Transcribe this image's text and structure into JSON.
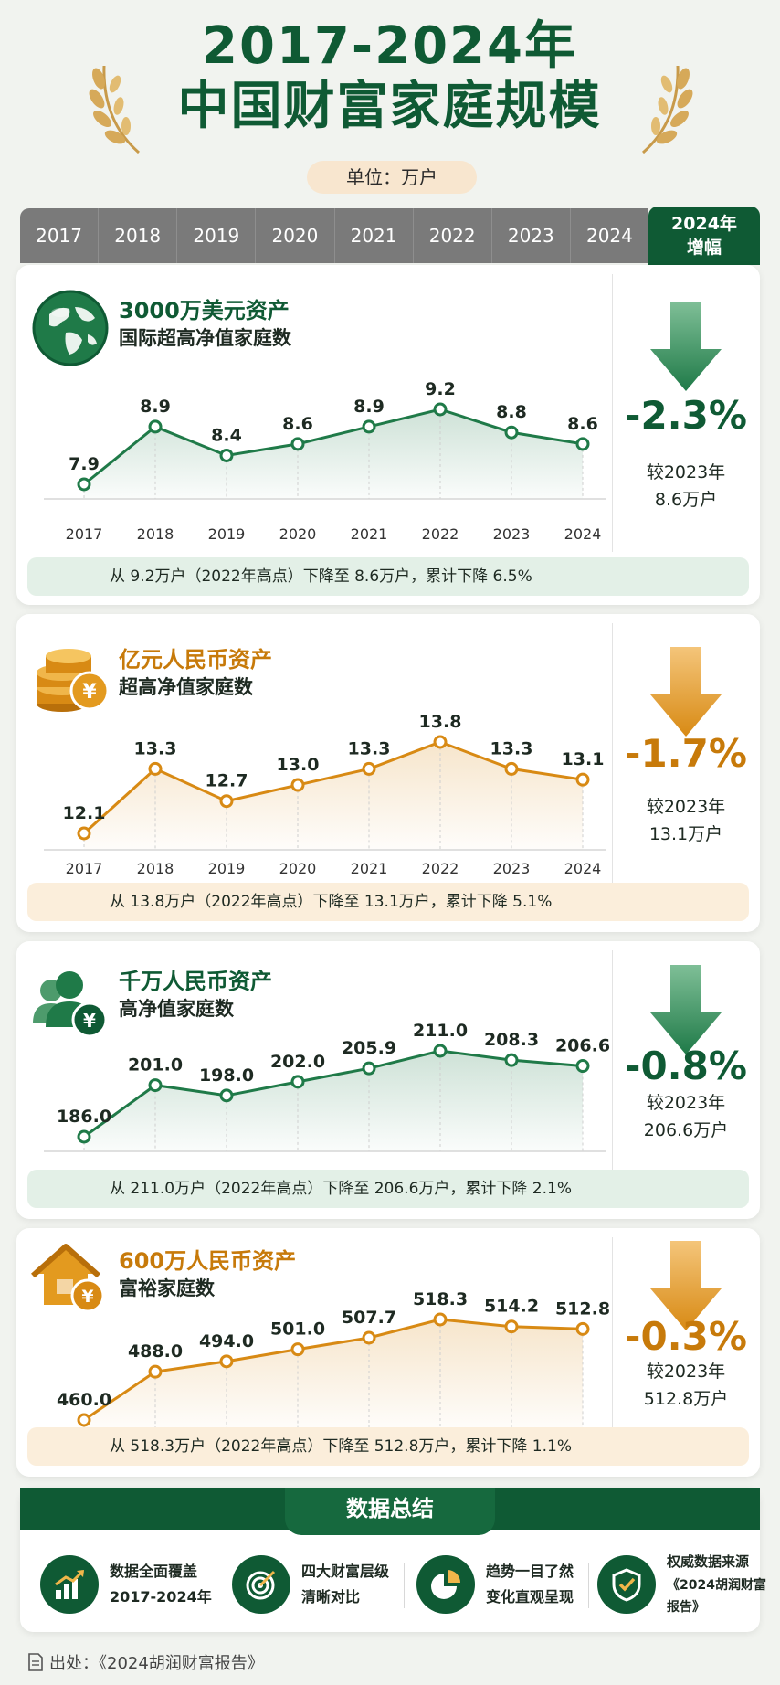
{
  "title": {
    "line1": "2017-2024年",
    "line2": "中国财富家庭规模"
  },
  "unit_label": "单位：万户",
  "years": [
    "2017",
    "2018",
    "2019",
    "2020",
    "2021",
    "2022",
    "2023",
    "2024"
  ],
  "increase_header": {
    "line1": "2024年",
    "line2": "增幅"
  },
  "colors": {
    "green": "#1f7a48",
    "orange": "#d88a14"
  },
  "chart_data": [
    {
      "type": "line",
      "category": "3000万美元资产",
      "subtitle": "国际超高净值家庭数",
      "x": [
        "2017",
        "2018",
        "2019",
        "2020",
        "2021",
        "2022",
        "2023",
        "2024"
      ],
      "values": [
        7.9,
        8.9,
        8.4,
        8.6,
        8.9,
        9.2,
        8.8,
        8.6
      ],
      "value_labels": [
        "7.9",
        "8.9",
        "8.4",
        "8.6",
        "8.9",
        "9.2",
        "8.8",
        "8.6"
      ],
      "change": "-2.3%",
      "compare_line1": "较2023年",
      "compare_line2": "8.6万户",
      "note": "从 9.2万户（2022年高点）下降至 8.6万户，累计下降 6.5%",
      "theme": "green",
      "icon": "globe-icon"
    },
    {
      "type": "line",
      "category": "亿元人民币资产",
      "subtitle": "超高净值家庭数",
      "x": [
        "2017",
        "2018",
        "2019",
        "2020",
        "2021",
        "2022",
        "2023",
        "2024"
      ],
      "values": [
        12.1,
        13.3,
        12.7,
        13.0,
        13.3,
        13.8,
        13.3,
        13.1
      ],
      "value_labels": [
        "12.1",
        "13.3",
        "12.7",
        "13.0",
        "13.3",
        "13.8",
        "13.3",
        "13.1"
      ],
      "change": "-1.7%",
      "compare_line1": "较2023年",
      "compare_line2": "13.1万户",
      "note": "从 13.8万户（2022年高点）下降至 13.1万户，累计下降 5.1%",
      "theme": "orange",
      "icon": "coin-stack-icon"
    },
    {
      "type": "line",
      "category": "千万人民币资产",
      "subtitle": "高净值家庭数",
      "x": [
        "2017",
        "2018",
        "2019",
        "2020",
        "2021",
        "2022",
        "2023",
        "2024"
      ],
      "values": [
        186.0,
        201.0,
        198.0,
        202.0,
        205.9,
        211.0,
        208.3,
        206.6
      ],
      "value_labels": [
        "186.0",
        "201.0",
        "198.0",
        "202.0",
        "205.9",
        "211.0",
        "208.3",
        "206.6"
      ],
      "change": "-0.8%",
      "compare_line1": "较2023年",
      "compare_line2": "206.6万户",
      "note": "从 211.0万户（2022年高点）下降至 206.6万户，累计下降 2.1%",
      "theme": "green",
      "icon": "people-icon"
    },
    {
      "type": "line",
      "category": "600万人民币资产",
      "subtitle": "富裕家庭数",
      "x": [
        "2017",
        "2018",
        "2019",
        "2020",
        "2021",
        "2022",
        "2023",
        "2024"
      ],
      "values": [
        460.0,
        488.0,
        494.0,
        501.0,
        507.7,
        518.3,
        514.2,
        512.8
      ],
      "value_labels": [
        "460.0",
        "488.0",
        "494.0",
        "501.0",
        "507.7",
        "518.3",
        "514.2",
        "512.8"
      ],
      "change": "-0.3%",
      "compare_line1": "较2023年",
      "compare_line2": "512.8万户",
      "note": "从 518.3万户（2022年高点）下降至 512.8万户，累计下降 1.1%",
      "theme": "orange",
      "icon": "house-icon"
    }
  ],
  "summary": {
    "title": "数据总结",
    "items": [
      {
        "line1": "数据全面覆盖",
        "line2": "2017-2024年",
        "icon": "bar-growth-icon"
      },
      {
        "line1": "四大财富层级",
        "line2": "清晰对比",
        "icon": "target-icon"
      },
      {
        "line1": "趋势一目了然",
        "line2": "变化直观呈现",
        "icon": "pie-icon"
      },
      {
        "line1": "权威数据来源",
        "line2": "《2024胡润财富",
        "line3": "报告》",
        "icon": "shield-check-icon"
      }
    ]
  },
  "source": "出处：《2024胡润财富报告》"
}
